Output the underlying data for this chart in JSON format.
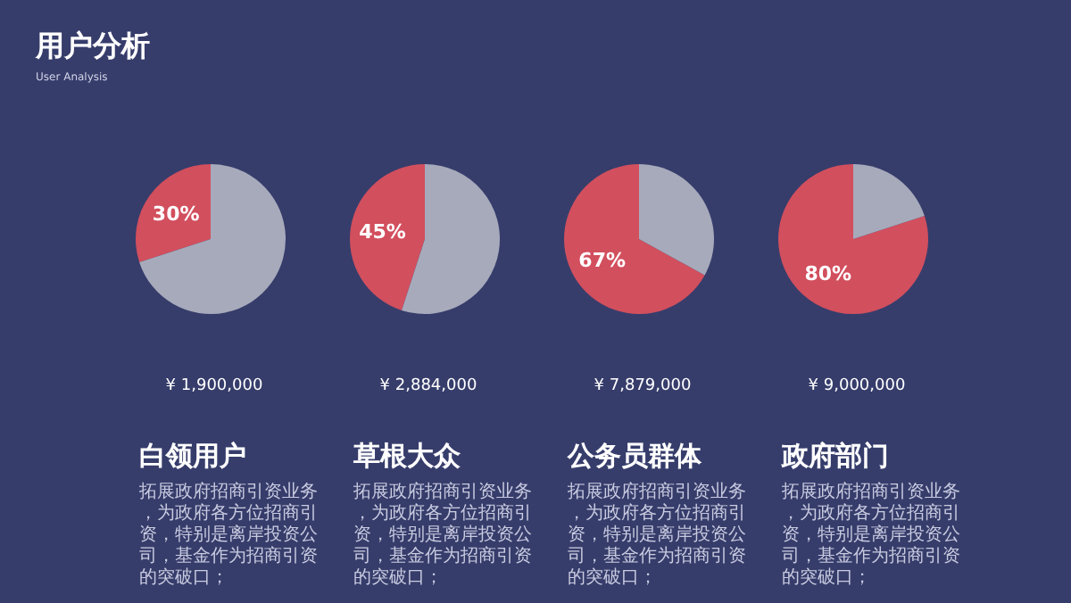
{
  "chart_data": [
    {
      "type": "other",
      "title": "用户分析",
      "subtitle": "User Analysis"
    },
    {
      "type": "pie",
      "title": "白领用户",
      "categories": [
        null,
        null
      ],
      "values": [
        30,
        70
      ],
      "colors": [
        "#d24f5e",
        "#a7aabb"
      ],
      "value_labels": [
        "30%",
        null
      ],
      "annotations": [
        "¥ 1,900,000",
        "拓展政府招商引资业务，为政府各方位招商引资，特别是离岸投资公司，基金作为招商引资的突破口；"
      ]
    },
    {
      "type": "pie",
      "title": "草根大众",
      "categories": [
        null,
        null
      ],
      "values": [
        45,
        55
      ],
      "colors": [
        "#d24f5e",
        "#a7aabb"
      ],
      "value_labels": [
        "45%",
        null
      ],
      "annotations": [
        "¥ 2,884,000",
        "拓展政府招商引资业务，为政府各方位招商引资，特别是离岸投资公司，基金作为招商引资的突破口；"
      ]
    },
    {
      "type": "pie",
      "title": "公务员群体",
      "categories": [
        null,
        null
      ],
      "values": [
        67,
        33
      ],
      "colors": [
        "#d24f5e",
        "#a7aabb"
      ],
      "value_labels": [
        "67%",
        null
      ],
      "annotations": [
        "¥ 7,879,000",
        "拓展政府招商引资业务，为政府各方位招商引资，特别是离岸投资公司，基金作为招商引资的突破口；"
      ]
    },
    {
      "type": "pie",
      "title": "政府部门",
      "categories": [
        null,
        null
      ],
      "values": [
        80,
        20
      ],
      "colors": [
        "#d24f5e",
        "#a7aabb"
      ],
      "value_labels": [
        "80%",
        null
      ],
      "annotations": [
        "¥ 9,000,000",
        "拓展政府招商引资业务，为政府各方位招商引资，特别是离岸投资公司，基金作为招商引资的突破口；"
      ]
    }
  ]
}
